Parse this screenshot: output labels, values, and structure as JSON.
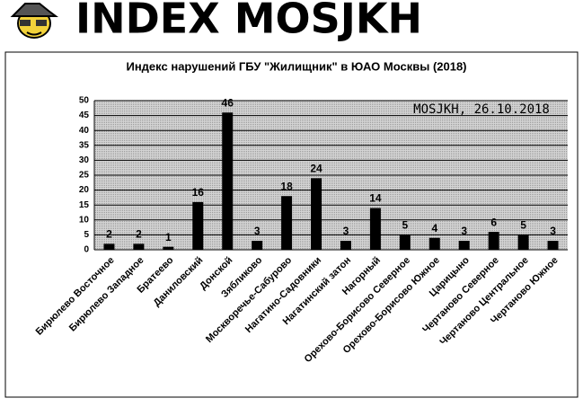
{
  "header": {
    "title": "INDEX MOSJKH"
  },
  "chart_data": {
    "type": "bar",
    "title": "Индекс нарушений ГБУ \"Жилищник\" в ЮАО Москвы (2018)",
    "annotation": "MOSJKH, 26.10.2018",
    "categories": [
      "Бирюлево Восточное",
      "Бирюлево Западное",
      "Братеево",
      "Даниловский",
      "Донской",
      "Зябликово",
      "Москворечье-Сабурово",
      "Нагатино-Садовники",
      "Нагатинский затон",
      "Нагорный",
      "Орехово-Борисово Северное",
      "Орехово-Борисово Южное",
      "Царицыно",
      "Чертаново Северное",
      "Чертаново Центральное",
      "Чертаново Южное"
    ],
    "values": [
      2,
      2,
      1,
      16,
      46,
      3,
      18,
      24,
      3,
      14,
      5,
      4,
      3,
      6,
      5,
      3
    ],
    "color": "#000000",
    "ylim": [
      0,
      50
    ],
    "yticks": [
      0,
      5,
      10,
      15,
      20,
      25,
      30,
      35,
      40,
      45,
      50
    ],
    "grid": true
  }
}
